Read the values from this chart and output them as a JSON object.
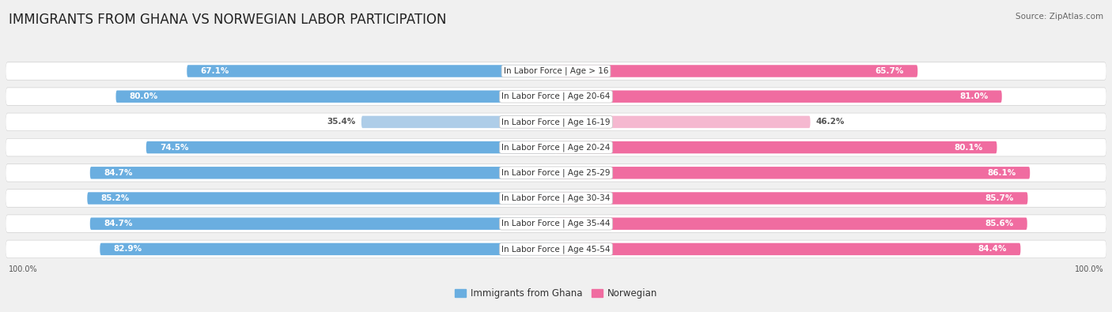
{
  "title": "IMMIGRANTS FROM GHANA VS NORWEGIAN LABOR PARTICIPATION",
  "source": "Source: ZipAtlas.com",
  "categories": [
    "In Labor Force | Age > 16",
    "In Labor Force | Age 20-64",
    "In Labor Force | Age 16-19",
    "In Labor Force | Age 20-24",
    "In Labor Force | Age 25-29",
    "In Labor Force | Age 30-34",
    "In Labor Force | Age 35-44",
    "In Labor Force | Age 45-54"
  ],
  "ghana_values": [
    67.1,
    80.0,
    35.4,
    74.5,
    84.7,
    85.2,
    84.7,
    82.9
  ],
  "norwegian_values": [
    65.7,
    81.0,
    46.2,
    80.1,
    86.1,
    85.7,
    85.6,
    84.4
  ],
  "ghana_color_dark": "#6aaee0",
  "ghana_color_light": "#aecde8",
  "norwegian_color_dark": "#f06ca0",
  "norwegian_color_light": "#f5b8d0",
  "row_bg_color": "#e8e8e8",
  "row_shadow_color": "#d0d0d0",
  "max_val": 100.0,
  "legend_ghana": "Immigrants from Ghana",
  "legend_norwegian": "Norwegian",
  "title_fontsize": 12,
  "cat_fontsize": 7.5,
  "value_fontsize": 7.5,
  "legend_fontsize": 8.5,
  "background_color": "#f0f0f0"
}
